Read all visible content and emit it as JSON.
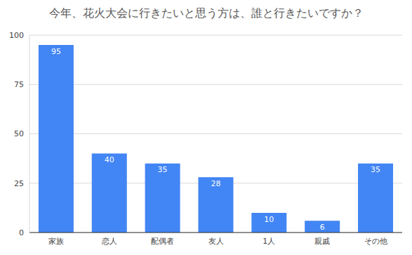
{
  "chart_data": {
    "type": "bar",
    "title": "今年、花火大会に行きたいと思う方は、誰と行きたいですか？",
    "categories": [
      "家族",
      "恋人",
      "配偶者",
      "友人",
      "1人",
      "親戚",
      "その他"
    ],
    "values": [
      95,
      40,
      35,
      28,
      10,
      6,
      35
    ],
    "color": "#4285f4",
    "ylim": [
      0,
      100
    ],
    "yticks": [
      0,
      25,
      50,
      75,
      100
    ],
    "grid": true,
    "data_labels": true
  }
}
